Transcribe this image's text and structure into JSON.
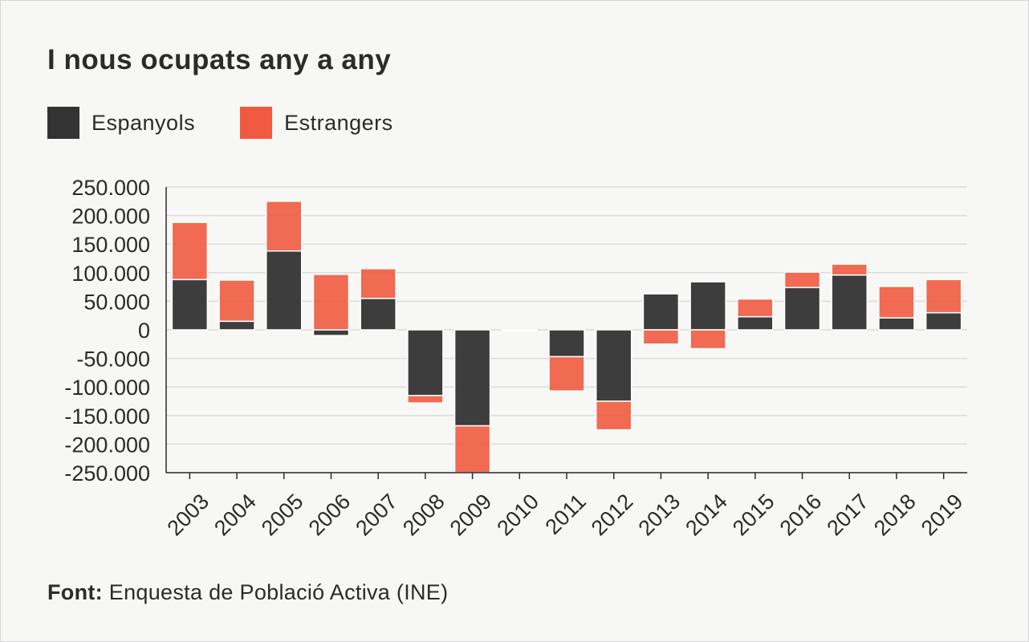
{
  "title": "I nous ocupats any a any",
  "legend": [
    {
      "label": "Espanyols",
      "color": "#333333"
    },
    {
      "label": "Estrangers",
      "color": "#f05a40"
    }
  ],
  "source": {
    "label": "Font:",
    "text": "Enquesta de Població Activa (INE)"
  },
  "chart_data": {
    "type": "bar",
    "stacked": true,
    "title": "I nous ocupats any a any",
    "xlabel": "",
    "ylabel": "",
    "ylim": [
      -250000,
      250000
    ],
    "yticks": [
      250000,
      200000,
      150000,
      100000,
      50000,
      0,
      -50000,
      -100000,
      -150000,
      -200000,
      -250000
    ],
    "ytick_labels": [
      "250.000",
      "200.000",
      "150.000",
      "100.000",
      "50.000",
      "0",
      "-50.000",
      "-100.000",
      "-150.000",
      "-200.000",
      "-250.000"
    ],
    "categories": [
      "2003",
      "2004",
      "2005",
      "2006",
      "2007",
      "2008",
      "2009",
      "2010",
      "2011",
      "2012",
      "2013",
      "2014",
      "2015",
      "2016",
      "2017",
      "2018",
      "2019"
    ],
    "series": [
      {
        "name": "Espanyols",
        "color": "#333333",
        "values": [
          88000,
          15000,
          138000,
          -10000,
          55000,
          -115000,
          -168000,
          -2000,
          -47000,
          -125000,
          63000,
          84000,
          23000,
          74000,
          96000,
          21000,
          30000
        ]
      },
      {
        "name": "Estrangers",
        "color": "#f05a40",
        "values": [
          100000,
          72000,
          87000,
          97000,
          52000,
          -13000,
          -95000,
          0,
          -60000,
          -50000,
          -25000,
          -33000,
          31000,
          27000,
          19000,
          55000,
          58000
        ]
      }
    ],
    "grid": true,
    "legend_position": "top-left"
  }
}
